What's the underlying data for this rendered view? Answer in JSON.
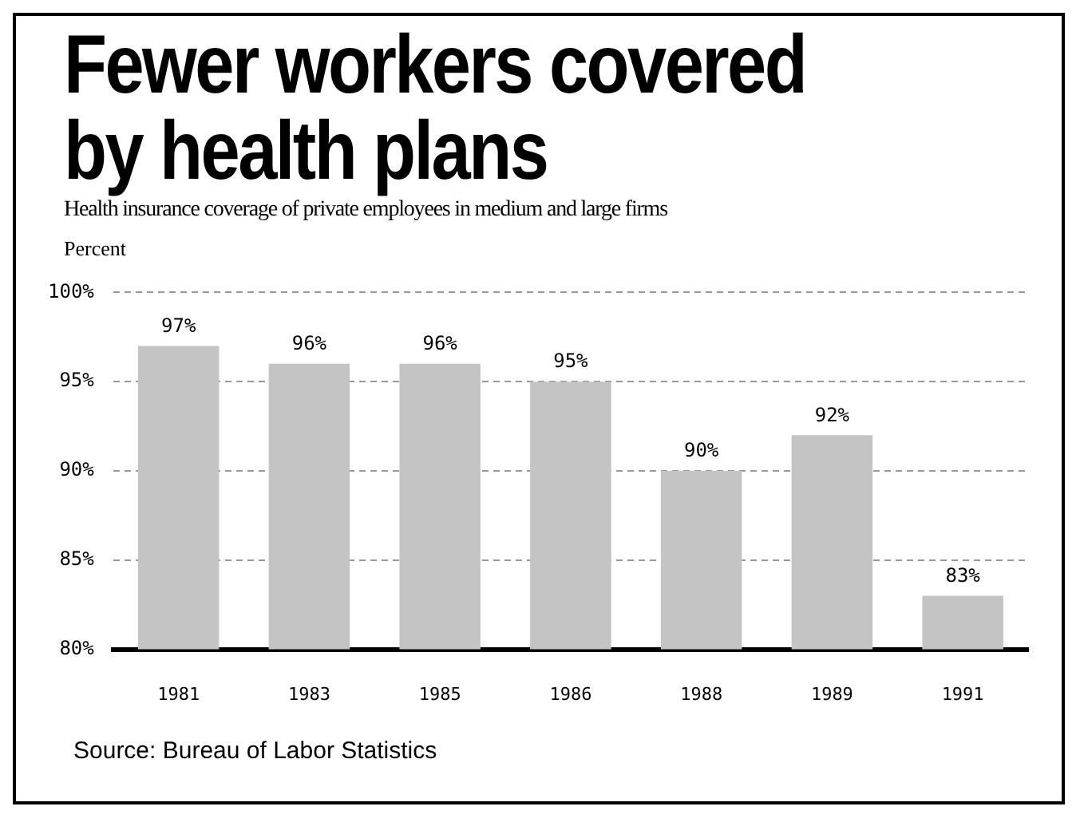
{
  "chart_data": {
    "type": "bar",
    "title": "Fewer workers covered by health plans",
    "subtitle": "Health insurance coverage of private employees in medium and large firms",
    "ylabel": "Percent",
    "categories": [
      "1981",
      "1983",
      "1985",
      "1986",
      "1988",
      "1989",
      "1991"
    ],
    "values": [
      97,
      96,
      96,
      95,
      90,
      92,
      83
    ],
    "value_labels": [
      "97%",
      "96%",
      "96%",
      "95%",
      "90%",
      "92%",
      "83%"
    ],
    "color": "#c4c4c4",
    "ylim": [
      80,
      100
    ],
    "yticks": [
      {
        "value": 80,
        "label": "80%"
      },
      {
        "value": 85,
        "label": "85%"
      },
      {
        "value": 90,
        "label": "90%"
      },
      {
        "value": 95,
        "label": "95%"
      },
      {
        "value": 100,
        "label": "100%"
      }
    ],
    "grid": "y",
    "legend": false,
    "annotations": [
      "Source: Bureau of Labor Statistics"
    ]
  }
}
